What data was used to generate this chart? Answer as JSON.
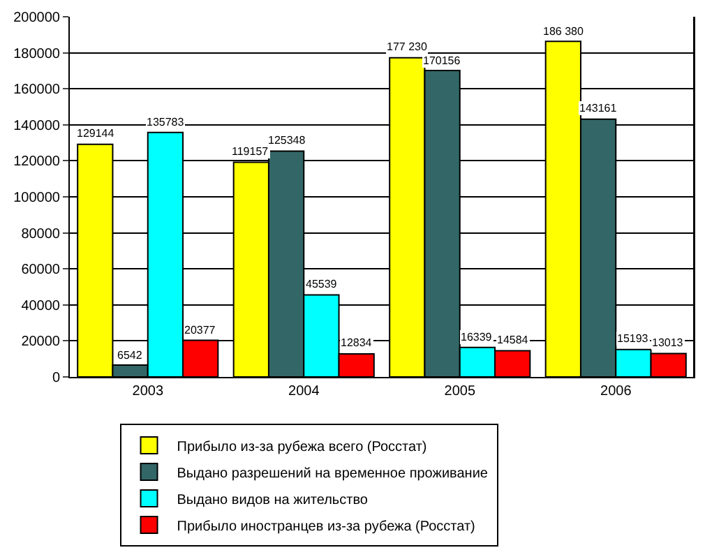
{
  "chart_data": {
    "type": "bar",
    "categories": [
      "2003",
      "2004",
      "2005",
      "2006"
    ],
    "series": [
      {
        "name": "Прибыло из-за рубежа всего (Росстат)",
        "color": "#ffff00",
        "values": [
          129144,
          119157,
          177230,
          186380
        ],
        "value_labels": [
          "129144",
          "119157",
          "177 230",
          "186 380"
        ]
      },
      {
        "name": "Выдано разрешений на временное проживание",
        "color": "#336666",
        "values": [
          6542,
          125348,
          170156,
          143161
        ],
        "value_labels": [
          "6542",
          "125348",
          "170156",
          "143161"
        ]
      },
      {
        "name": "Выдано видов на жительство",
        "color": "#00ffff",
        "values": [
          135783,
          45539,
          16339,
          15193
        ],
        "value_labels": [
          "135783",
          "45539",
          "16339",
          "15193"
        ]
      },
      {
        "name": "Прибыло иностранцев из-за рубежа (Росстат)",
        "color": "#ff0000",
        "values": [
          20377,
          12834,
          14584,
          13013
        ],
        "value_labels": [
          "20377",
          "12834",
          "14584",
          "13013"
        ]
      }
    ],
    "ylim": [
      0,
      200000
    ],
    "yticks": [
      0,
      20000,
      40000,
      60000,
      80000,
      100000,
      120000,
      140000,
      160000,
      180000,
      200000
    ],
    "grid": "y",
    "legend": "bottom"
  }
}
